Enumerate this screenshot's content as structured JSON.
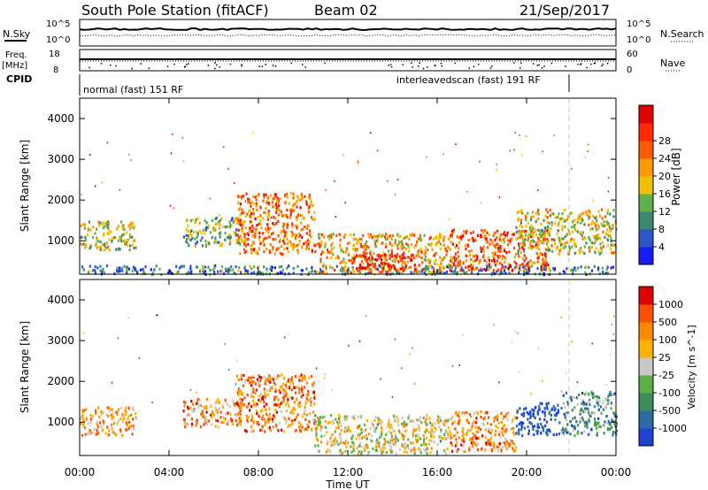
{
  "header": {
    "station": "South Pole Station (fitACF)",
    "beam": "Beam 02",
    "date": "21/Sep/2017"
  },
  "noise_panel": {
    "left_label": "N.Sky",
    "right_label": "N.Search",
    "left_ticks": [
      "10^5",
      "10^0"
    ],
    "right_ticks": [
      "10^5",
      "10^0"
    ]
  },
  "freq_panel": {
    "left_label_1": "Freq.",
    "left_label_2": "[MHz]",
    "right_label": "Nave",
    "left_ticks": [
      "18",
      "8"
    ],
    "right_ticks": [
      "60",
      "0"
    ]
  },
  "cpid_panel": {
    "label": "CPID",
    "modes": [
      {
        "text": "normal (fast) 151 RF",
        "start_hour": 0.0,
        "end_hour": 21.9
      },
      {
        "text": "interleavedscan (fast) 191 RF",
        "start_hour": 21.9,
        "end_hour": 24.0
      }
    ]
  },
  "time_axis": {
    "label": "Time UT",
    "ticks": [
      "00:00",
      "04:00",
      "08:00",
      "12:00",
      "16:00",
      "20:00",
      "00:00"
    ]
  },
  "chart_data": [
    {
      "type": "heatmap",
      "panel": "power",
      "ylabel": "Slant Range [km]",
      "x_range_hours": [
        0,
        24
      ],
      "ylim": [
        180,
        4500
      ],
      "yticks": [
        "1000",
        "2000",
        "3000",
        "4000"
      ],
      "colorbar": {
        "label": "Power [dB]",
        "ticks": [
          "4",
          "8",
          "12",
          "16",
          "20",
          "24",
          "28"
        ],
        "colors": [
          "#1a1aff",
          "#2b55c8",
          "#3a8a70",
          "#5fb04a",
          "#f0c000",
          "#ff9a00",
          "#ff5a00",
          "#ff2a00",
          "#e00000"
        ]
      },
      "regions": [
        {
          "t0": 0.0,
          "t1": 2.5,
          "r0": 800,
          "r1": 1500,
          "level": 0.45
        },
        {
          "t0": 0.0,
          "t1": 24.0,
          "r0": 200,
          "r1": 420,
          "level": 0.25
        },
        {
          "t0": 4.6,
          "t1": 7.2,
          "r0": 900,
          "r1": 1600,
          "level": 0.4
        },
        {
          "t0": 7.0,
          "t1": 10.5,
          "r0": 700,
          "r1": 2200,
          "level": 0.7
        },
        {
          "t0": 10.5,
          "t1": 16.5,
          "r0": 250,
          "r1": 1200,
          "level": 0.6
        },
        {
          "t0": 12.0,
          "t1": 15.0,
          "r0": 300,
          "r1": 700,
          "level": 0.9
        },
        {
          "t0": 16.5,
          "t1": 21.0,
          "r0": 300,
          "r1": 1300,
          "level": 0.75
        },
        {
          "t0": 19.5,
          "t1": 24.0,
          "r0": 700,
          "r1": 1800,
          "level": 0.5
        }
      ]
    },
    {
      "type": "heatmap",
      "panel": "velocity",
      "ylabel": "Slant Range [km]",
      "x_range_hours": [
        0,
        24
      ],
      "ylim": [
        180,
        4500
      ],
      "yticks": [
        "1000",
        "2000",
        "3000",
        "4000"
      ],
      "colorbar": {
        "label": "Velocity [m s^-1]",
        "ticks": [
          "1000",
          "500",
          "100",
          "25",
          "-25",
          "-100",
          "-500",
          "-1000"
        ],
        "colors": [
          "#2040d0",
          "#2c6aa8",
          "#3c8c60",
          "#5ab040",
          "#c8c8c8",
          "#ffb000",
          "#ff8a00",
          "#ff5000",
          "#e00000"
        ]
      },
      "regions": [
        {
          "t0": 0.0,
          "t1": 2.5,
          "r0": 700,
          "r1": 1400,
          "level": 0.65
        },
        {
          "t0": 4.6,
          "t1": 7.2,
          "r0": 900,
          "r1": 1600,
          "level": 0.7
        },
        {
          "t0": 7.0,
          "t1": 10.5,
          "r0": 800,
          "r1": 2200,
          "level": 0.75
        },
        {
          "t0": 10.5,
          "t1": 16.5,
          "r0": 250,
          "r1": 1200,
          "level": 0.55
        },
        {
          "t0": 16.5,
          "t1": 19.5,
          "r0": 300,
          "r1": 1300,
          "level": 0.7
        },
        {
          "t0": 19.5,
          "t1": 21.5,
          "r0": 700,
          "r1": 1500,
          "level": 0.05
        },
        {
          "t0": 21.5,
          "t1": 24.0,
          "r0": 700,
          "r1": 1800,
          "level": 0.3
        }
      ]
    }
  ]
}
